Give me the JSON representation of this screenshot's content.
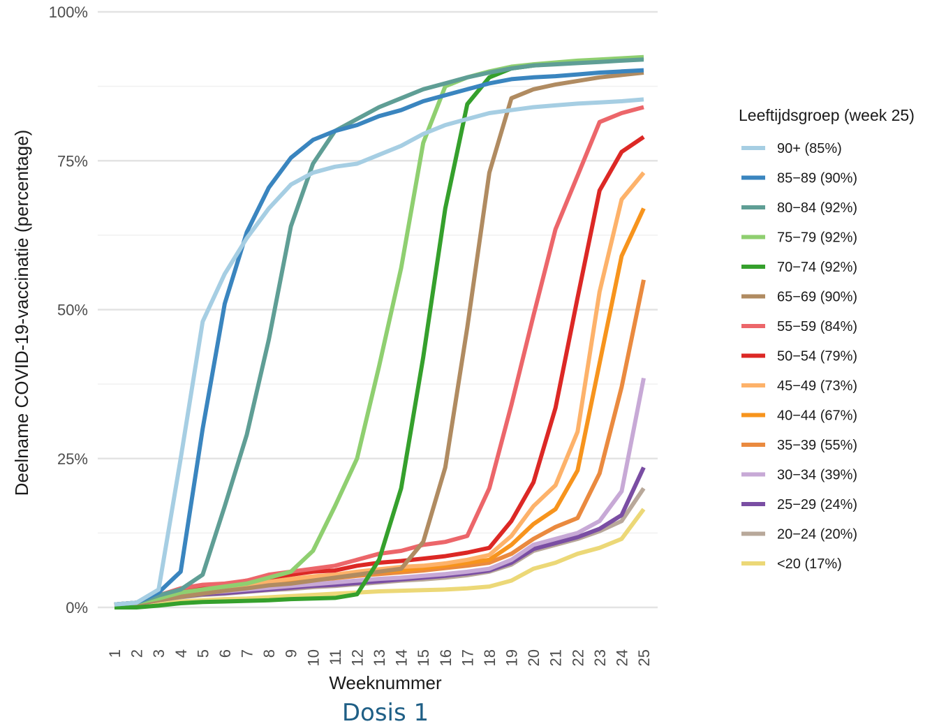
{
  "chart_data": {
    "type": "line",
    "xlabel": "Weeknummer",
    "ylabel": "Deelname COVID-19-vaccinatie (percentage)",
    "caption": "Dosis 1",
    "ylim": [
      0,
      100
    ],
    "yticks": [
      0,
      25,
      50,
      75,
      100
    ],
    "ytick_labels": [
      "0%",
      "25%",
      "50%",
      "75%",
      "100%"
    ],
    "grid": true,
    "legend_title": "Leeftijdsgroep (week 25)",
    "legend_position": "right",
    "x": [
      1,
      2,
      3,
      4,
      5,
      6,
      7,
      8,
      9,
      10,
      11,
      12,
      13,
      14,
      15,
      16,
      17,
      18,
      19,
      20,
      21,
      22,
      23,
      24,
      25
    ],
    "series": [
      {
        "name": "90+ (85%)",
        "color": "#a6cee3",
        "values": [
          0.5,
          0.8,
          3,
          25,
          48,
          56,
          62,
          67,
          71,
          73,
          74,
          74.5,
          76,
          77.5,
          79.5,
          81,
          82,
          83,
          83.5,
          84,
          84.3,
          84.6,
          84.8,
          85,
          85.3
        ]
      },
      {
        "name": "85-89 (90%)",
        "color": "#3a85bf",
        "values": [
          0.5,
          0.8,
          2.5,
          6,
          30,
          51,
          63,
          70.5,
          75.5,
          78.5,
          80,
          81,
          82.5,
          83.5,
          85,
          86,
          87,
          88,
          88.7,
          89,
          89.2,
          89.5,
          89.8,
          90,
          90.2
        ]
      },
      {
        "name": "80-84 (92%)",
        "color": "#5f9e95",
        "values": [
          0.5,
          0.8,
          2,
          3,
          5.5,
          17,
          29,
          45,
          64,
          74.5,
          80,
          82,
          84,
          85.5,
          87,
          88,
          89,
          89.8,
          90.5,
          91,
          91.2,
          91.4,
          91.6,
          91.8,
          92
        ]
      },
      {
        "name": "75-79 (92%)",
        "color": "#8fcf70",
        "values": [
          0.5,
          0.8,
          1.5,
          2.5,
          3,
          3.5,
          4,
          5,
          6,
          9.5,
          17,
          25,
          40.5,
          57,
          78,
          87.5,
          89,
          90,
          90.8,
          91.2,
          91.5,
          91.8,
          92,
          92.2,
          92.4
        ]
      },
      {
        "name": "70-74 (92%)",
        "color": "#35a02c",
        "values": [
          0,
          0,
          0.3,
          0.7,
          0.9,
          1,
          1.1,
          1.2,
          1.4,
          1.5,
          1.6,
          2.2,
          8,
          20,
          42,
          67,
          84.5,
          89,
          90.5,
          91,
          91.3,
          91.6,
          91.9,
          92.1,
          92.3
        ]
      },
      {
        "name": "65-69 (90%)",
        "color": "#b08b61",
        "values": [
          0.3,
          0.6,
          1.2,
          1.8,
          2.3,
          2.8,
          3.2,
          3.7,
          4,
          4.5,
          5,
          5.5,
          6,
          6.5,
          11,
          23.5,
          47,
          73,
          85.5,
          87,
          87.8,
          88.4,
          89,
          89.4,
          89.8
        ]
      },
      {
        "name": "55-59 (84%)",
        "color": "#ec666a",
        "values": [
          0.5,
          0.8,
          2,
          3.2,
          3.8,
          4,
          4.5,
          5.5,
          6,
          6.5,
          7,
          8,
          9,
          9.5,
          10.5,
          11,
          12,
          20,
          34,
          49,
          63.5,
          72.5,
          81.5,
          83,
          84
        ]
      },
      {
        "name": "50-54 (79%)",
        "color": "#dc2825",
        "values": [
          0.5,
          0.8,
          2,
          3,
          3.5,
          3.8,
          4.5,
          5,
          5.5,
          6,
          6.2,
          7,
          7.5,
          7.8,
          8.2,
          8.6,
          9.2,
          10,
          14.5,
          21,
          33.5,
          52,
          70,
          76.5,
          79
        ]
      },
      {
        "name": "45-49 (73%)",
        "color": "#fdb26a",
        "values": [
          0.4,
          0.7,
          1.6,
          2.5,
          3,
          3.3,
          3.8,
          4.3,
          4.8,
          5.2,
          5.5,
          6,
          6.4,
          6.8,
          7,
          7.4,
          8,
          8.8,
          12,
          17,
          20.5,
          29.5,
          53,
          68.5,
          73
        ]
      },
      {
        "name": "40-44 (67%)",
        "color": "#f7941d",
        "values": [
          0.4,
          0.7,
          1.6,
          2.5,
          3,
          3.2,
          3.6,
          4.1,
          4.5,
          4.9,
          5.2,
          5.6,
          6,
          6.2,
          6.6,
          7,
          7.5,
          8,
          10.5,
          14,
          16.5,
          23,
          41,
          59,
          67
        ]
      },
      {
        "name": "35-39 (55%)",
        "color": "#ea8a3f",
        "values": [
          0.4,
          0.7,
          1.5,
          2.3,
          2.8,
          3,
          3.4,
          3.8,
          4.2,
          4.6,
          4.9,
          5.3,
          5.6,
          5.9,
          6.2,
          6.6,
          7,
          7.5,
          9,
          11.5,
          13.5,
          15,
          22.5,
          37,
          55
        ]
      },
      {
        "name": "30-34 (39%)",
        "color": "#c7a9d6",
        "values": [
          0.4,
          0.6,
          1.3,
          2,
          2.4,
          2.7,
          3,
          3.3,
          3.6,
          3.9,
          4.2,
          4.5,
          4.8,
          5,
          5.3,
          5.6,
          6,
          6.5,
          8,
          10.5,
          11.5,
          12.5,
          14.5,
          19.5,
          38.5
        ]
      },
      {
        "name": "25-29 (24%)",
        "color": "#7a4ea3",
        "values": [
          0.4,
          0.6,
          1.2,
          1.8,
          2.2,
          2.4,
          2.7,
          3,
          3.3,
          3.6,
          3.8,
          4.1,
          4.4,
          4.7,
          5,
          5.3,
          5.7,
          6.2,
          7.5,
          9.8,
          10.8,
          11.8,
          13.2,
          15.5,
          23.5
        ]
      },
      {
        "name": "20-24 (20%)",
        "color": "#b8a89a",
        "values": [
          0.4,
          0.6,
          1.2,
          1.7,
          2.1,
          2.3,
          2.6,
          2.9,
          3.1,
          3.4,
          3.6,
          3.9,
          4.2,
          4.5,
          4.7,
          5,
          5.4,
          6,
          7.2,
          9.5,
          10.5,
          11.5,
          12.8,
          14.5,
          20
        ]
      },
      {
        "name": "<20 (17%)",
        "color": "#ecd877",
        "values": [
          0,
          0.3,
          0.8,
          1,
          1.2,
          1.4,
          1.5,
          1.7,
          1.9,
          2.1,
          2.3,
          2.5,
          2.7,
          2.8,
          2.9,
          3,
          3.2,
          3.5,
          4.5,
          6.5,
          7.5,
          9,
          10,
          11.5,
          16.5
        ]
      }
    ]
  }
}
